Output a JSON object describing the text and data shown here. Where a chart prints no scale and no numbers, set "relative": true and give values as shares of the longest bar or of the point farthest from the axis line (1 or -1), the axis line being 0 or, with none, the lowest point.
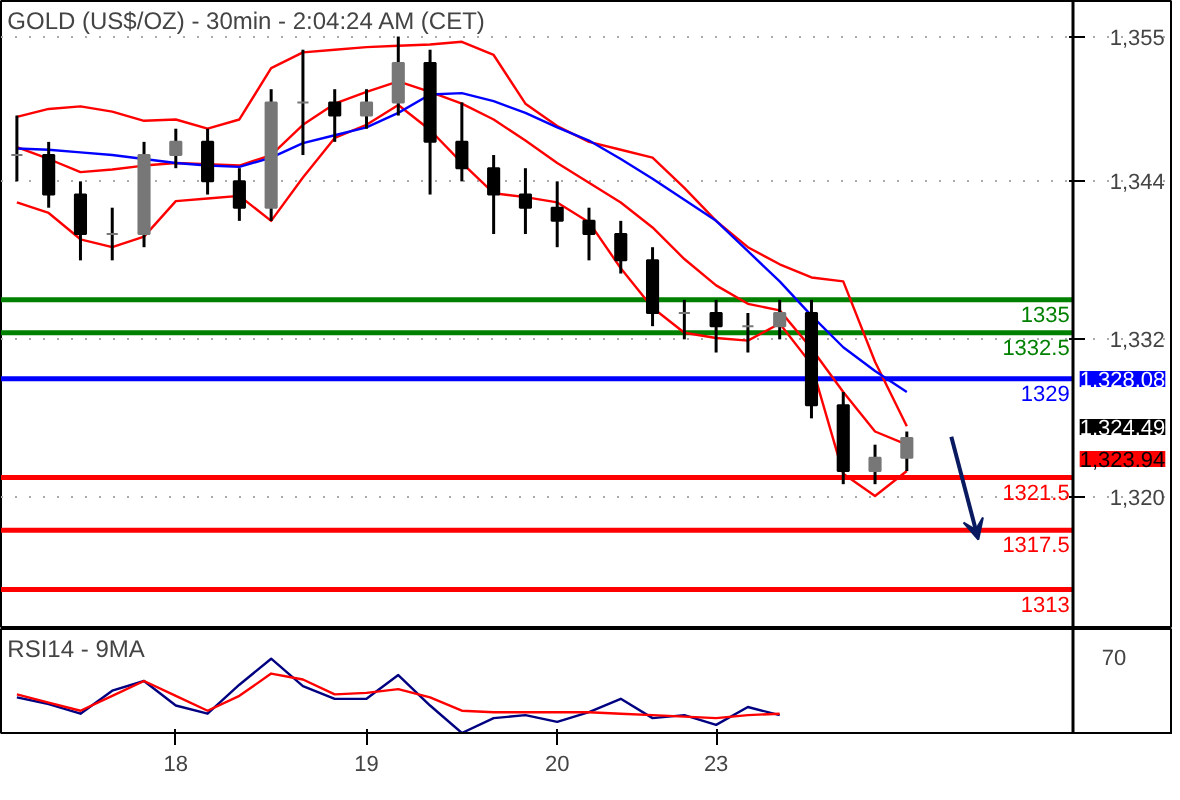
{
  "chart_data": [
    {
      "type": "candlestick",
      "title": "GOLD (US$/OZ) - 30min - 2:04:24 AM (CET)",
      "grid": "y",
      "tick_labels": "y",
      "categories": [
        null,
        null,
        null,
        null,
        null,
        null,
        null,
        null,
        null,
        null,
        null,
        null,
        null,
        null,
        null,
        null,
        null,
        null,
        null,
        null,
        null,
        null,
        null,
        null,
        null,
        null,
        null,
        null,
        null
      ],
      "ylim": [
        1310,
        1357.7
      ],
      "yticks": [
        {
          "value": 1320,
          "label": "1,320"
        },
        {
          "value": 1332,
          "label": "1,332"
        },
        {
          "value": 1344,
          "label": "1,344"
        },
        {
          "value": 1355,
          "label": "1,355"
        }
      ],
      "ohlc": [
        [
          1346,
          1349,
          1344,
          1346
        ],
        [
          1346,
          1347,
          1342,
          1343
        ],
        [
          1343,
          1344,
          1338,
          1340
        ],
        [
          1340,
          1342,
          1338,
          1340
        ],
        [
          1340,
          1347,
          1339,
          1346
        ],
        [
          1346,
          1348,
          1345,
          1347
        ],
        [
          1347,
          1348,
          1343,
          1344
        ],
        [
          1344,
          1345,
          1341,
          1342
        ],
        [
          1342,
          1351,
          1341,
          1350
        ],
        [
          1350,
          1354,
          1346,
          1350
        ],
        [
          1350,
          1351,
          1347,
          1349
        ],
        [
          1349,
          1351,
          1348,
          1350
        ],
        [
          1350,
          1355,
          1349,
          1353
        ],
        [
          1353,
          1354,
          1343,
          1347
        ],
        [
          1347,
          1350,
          1344,
          1345
        ],
        [
          1345,
          1346,
          1340,
          1343
        ],
        [
          1343,
          1345,
          1340,
          1342
        ],
        [
          1342,
          1344,
          1339,
          1341
        ],
        [
          1341,
          1342,
          1338,
          1340
        ],
        [
          1340,
          1341,
          1337,
          1338
        ],
        [
          1338,
          1339,
          1333,
          1334
        ],
        [
          1334,
          1335,
          1332,
          1334
        ],
        [
          1334,
          1335,
          1331,
          1333
        ],
        [
          1333,
          1334,
          1331,
          1333
        ],
        [
          1333,
          1335,
          1332,
          1334
        ],
        [
          1334,
          1335,
          1326,
          1327
        ],
        [
          1327,
          1328,
          1321,
          1322
        ],
        [
          1322,
          1324,
          1321,
          1323
        ],
        [
          1323,
          1325,
          1322,
          1324.5
        ]
      ],
      "series": [
        {
          "type": "line",
          "color": "#ff0000",
          "values": [
            1348.9,
            1349.5,
            1349.7,
            1349.3,
            1348.6,
            1348.7,
            1348.0,
            1348.7,
            1352.6,
            1353.8,
            1354.0,
            1354.2,
            1354.3,
            1354.4,
            1354.6,
            1353.6,
            1349.9,
            1348.2,
            1347.0,
            1346.4,
            1345.8,
            1343.5,
            1341.0,
            1339.0,
            1337.7,
            1336.7,
            1336.4,
            1330.3,
            1325.4
          ]
        },
        {
          "type": "line",
          "color": "#ff0000",
          "values": [
            1346.6,
            1345.7,
            1344.7,
            1344.9,
            1345.2,
            1345.4,
            1345.3,
            1345.2,
            1346,
            1348.3,
            1349.9,
            1350.8,
            1351.6,
            1350.8,
            1349.9,
            1348.7,
            1347.1,
            1345.4,
            1343.9,
            1342.4,
            1340.5,
            1338.1,
            1336.1,
            1334.7,
            1334.2,
            1331.3,
            1328,
            1325,
            1324
          ]
        },
        {
          "type": "line",
          "color": "#ff0000",
          "values": [
            1342.4,
            1341.6,
            1339.6,
            1339.0,
            1339.8,
            1342.5,
            1342.7,
            1342.9,
            1341.0,
            1344.3,
            1347.3,
            1348.3,
            1349.8,
            1347.9,
            1345.4,
            1343.1,
            1342.8,
            1342.4,
            1340.9,
            1337.4,
            1334.4,
            1332.5,
            1332.1,
            1331.9,
            1333.2,
            1330.1,
            1321.8,
            1320.1,
            1322
          ]
        },
        {
          "type": "line",
          "color": "#0000ff",
          "values": [
            1346.5,
            1346.4,
            1346.2,
            1346,
            1345.7,
            1345.4,
            1345.2,
            1345.1,
            1345.8,
            1346.9,
            1347.5,
            1348.1,
            1349.2,
            1350.6,
            1350.7,
            1350.1,
            1349.2,
            1348.1,
            1347.1,
            1345.7,
            1344.2,
            1342.6,
            1341,
            1338.7,
            1336.4,
            1333.8,
            1331.4,
            1329.6,
            1328
          ]
        }
      ],
      "ref_lines": [
        {
          "axis": "y",
          "value": 1335,
          "label": "1335",
          "color": "#008000"
        },
        {
          "axis": "y",
          "value": 1332.5,
          "label": "1332.5",
          "color": "#008000"
        },
        {
          "axis": "y",
          "value": 1329,
          "label": "1329",
          "color": "#0000ff"
        },
        {
          "axis": "y",
          "value": 1321.5,
          "label": "1321.5",
          "color": "#ff0000"
        },
        {
          "axis": "y",
          "value": 1317.5,
          "label": "1317.5",
          "color": "#ff0000"
        },
        {
          "axis": "y",
          "value": 1313,
          "label": "1313",
          "color": "#ff0000"
        }
      ],
      "annotations": [
        "1,328.08",
        "1,324.49",
        "1,323.94"
      ]
    },
    {
      "type": "line",
      "title": "RSI14 - 9MA",
      "relative": true,
      "categories": [
        null,
        null,
        null,
        null,
        null,
        "18",
        null,
        null,
        null,
        null,
        null,
        "19",
        null,
        null,
        null,
        null,
        null,
        "20",
        null,
        null,
        null,
        null,
        "23",
        null,
        null
      ],
      "series": [
        {
          "color": "#000080",
          "values": [
            0.48,
            0.39,
            0.26,
            0.57,
            0.7,
            0.37,
            0.26,
            0.65,
            1,
            0.63,
            0.46,
            0.46,
            0.78,
            0.37,
            0,
            0.2,
            0.24,
            0.15,
            0.28,
            0.46,
            0.2,
            0.24,
            0.11,
            0.35,
            0.24
          ]
        },
        {
          "color": "#ff0000",
          "values": [
            0.52,
            0.41,
            0.3,
            0.5,
            0.7,
            0.5,
            0.3,
            0.5,
            0.8,
            0.72,
            0.52,
            0.54,
            0.59,
            0.48,
            0.3,
            0.28,
            0.28,
            0.28,
            0.28,
            0.26,
            0.24,
            0.22,
            0.2,
            0.24,
            0.26
          ]
        }
      ],
      "annotations": [
        "70"
      ]
    }
  ]
}
